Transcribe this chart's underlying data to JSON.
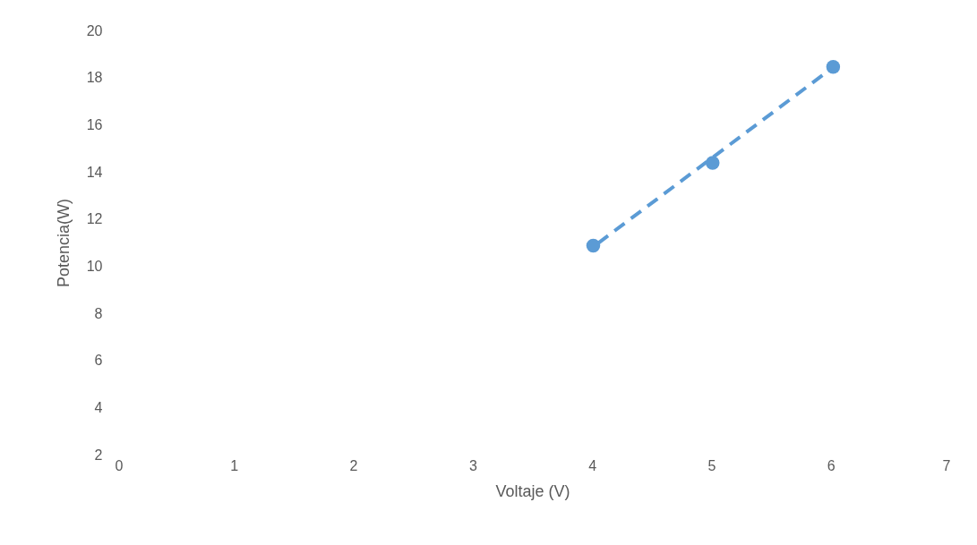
{
  "chart_data": {
    "type": "scatter",
    "xlabel": "Voltaje (V)",
    "ylabel": "Potencia(W)",
    "xlim": [
      0,
      7
    ],
    "xticks": [
      0,
      1,
      2,
      3,
      4,
      5,
      6,
      7
    ],
    "ylim": [
      2,
      20
    ],
    "yticks": [
      2,
      4,
      6,
      8,
      10,
      12,
      14,
      16,
      18,
      20
    ],
    "grid": false,
    "marker": "circle",
    "series": [
      {
        "type": "scatter",
        "color": "#5b9bd5",
        "x": [
          4.01,
          5.01,
          6.02
        ],
        "values": [
          10.87,
          14.38,
          18.45
        ]
      },
      {
        "type": "line",
        "color": "#5b9bd5",
        "line_style": "dashed",
        "marker": "none",
        "x": [
          4.05,
          6.0
        ],
        "values": [
          10.97,
          18.36
        ]
      }
    ]
  }
}
